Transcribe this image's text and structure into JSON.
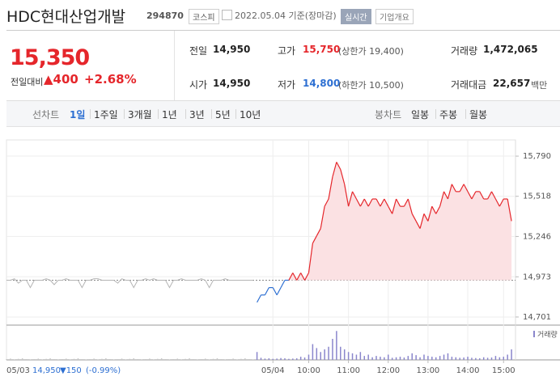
{
  "header": {
    "name": "HDC현대산업개발",
    "code": "294870",
    "market": "코스피",
    "date": "2022.05.04 기준(장마감)",
    "realtime": "실시간",
    "company_info": "기업개요"
  },
  "quote": {
    "price": "15,350",
    "change_label": "전일대비",
    "change": "▲400",
    "rate": "+2.68%"
  },
  "stats": [
    {
      "label": "전일",
      "value": "14,950"
    },
    {
      "label": "고가",
      "value": "15,750",
      "sub": "(상한가 19,400)"
    },
    {
      "label": "거래량",
      "value": "1,472,065"
    },
    {
      "label": "시가",
      "value": "14,950"
    },
    {
      "label": "저가",
      "value": "14,800",
      "sub": "(하한가 10,500)"
    },
    {
      "label": "거래대금",
      "value": "22,657",
      "unit": "백만"
    }
  ],
  "tabs": {
    "line_label": "선차트",
    "line_periods": [
      "1일",
      "1주일",
      "3개월",
      "1년",
      "3년",
      "5년",
      "10년"
    ],
    "candle_label": "봉차트",
    "candle_periods": [
      "일봉",
      "주봉",
      "월봉"
    ]
  },
  "footer": {
    "date": "05/03",
    "close": "14,950",
    "change": "▼150",
    "rate": "(-0.99%)"
  },
  "chart_data": {
    "type": "line",
    "baseline": 14950,
    "xlim": [
      0,
      128
    ],
    "ylim": [
      14657,
      15845
    ],
    "yticks": [
      {
        "value": 15790,
        "label": "15,790"
      },
      {
        "value": 15518,
        "label": "15,518"
      },
      {
        "value": 15246,
        "label": "15,246"
      },
      {
        "value": 14973,
        "label": "14,973"
      },
      {
        "value": 14701,
        "label": "14,701"
      }
    ],
    "xticks": [
      {
        "value": 67,
        "label": "05/04"
      },
      {
        "value": 76,
        "label": "10:00"
      },
      {
        "value": 86,
        "label": "11:00"
      },
      {
        "value": 96,
        "label": "12:00"
      },
      {
        "value": 106,
        "label": "13:00"
      },
      {
        "value": 116,
        "label": "14:00"
      },
      {
        "value": 125,
        "label": "15:00"
      }
    ],
    "series": [
      {
        "color": "#b4b4b4",
        "values": [
          14950,
          14950,
          14960,
          14930,
          14950,
          14950,
          14900,
          14950,
          14950,
          14950,
          14960,
          14950,
          14920,
          14950,
          14950,
          14960,
          14950,
          14950,
          14950,
          14900,
          14950,
          14950,
          14960,
          14960,
          14950,
          14950,
          14950,
          14950,
          14930,
          14960,
          14950,
          14950,
          14900,
          14950,
          14950,
          14960,
          14950,
          14960,
          14950,
          14950,
          14950,
          14900,
          14950,
          14950,
          14960,
          14950,
          14950,
          14950,
          14950,
          14960,
          14950,
          14900,
          14950,
          14950,
          14950,
          14960,
          14950,
          14950,
          14950,
          14950,
          14950,
          14950,
          14950,
          null,
          null,
          null,
          null,
          null,
          null,
          null,
          null,
          null,
          null,
          null,
          null,
          null,
          null,
          null,
          null,
          null,
          null,
          null,
          null,
          null,
          null,
          null,
          null,
          null,
          null,
          null,
          null,
          null,
          null,
          null,
          null,
          null,
          null,
          null,
          null,
          null,
          null,
          null,
          null,
          null,
          null,
          null,
          null,
          null,
          null,
          null,
          null,
          null,
          null,
          null,
          null,
          null,
          null,
          null,
          null,
          null,
          null,
          null,
          null,
          null,
          null,
          null,
          null,
          null
        ]
      },
      {
        "up_color": "#e5262b",
        "down_color": "#2d6fd2",
        "fill": "#fbe1e3",
        "values": [
          null,
          null,
          null,
          null,
          null,
          null,
          null,
          null,
          null,
          null,
          null,
          null,
          null,
          null,
          null,
          null,
          null,
          null,
          null,
          null,
          null,
          null,
          null,
          null,
          null,
          null,
          null,
          null,
          null,
          null,
          null,
          null,
          null,
          null,
          null,
          null,
          null,
          null,
          null,
          null,
          null,
          null,
          null,
          null,
          null,
          null,
          null,
          null,
          null,
          null,
          null,
          null,
          null,
          null,
          null,
          null,
          null,
          null,
          null,
          null,
          null,
          null,
          null,
          14800,
          14850,
          14850,
          14900,
          14900,
          14850,
          14900,
          14950,
          14950,
          15000,
          14950,
          15000,
          14950,
          15000,
          15200,
          15250,
          15300,
          15450,
          15500,
          15650,
          15750,
          15700,
          15600,
          15450,
          15550,
          15500,
          15450,
          15500,
          15450,
          15500,
          15500,
          15450,
          15500,
          15450,
          15400,
          15500,
          15450,
          15450,
          15500,
          15400,
          15350,
          15300,
          15400,
          15350,
          15450,
          15400,
          15450,
          15550,
          15500,
          15600,
          15550,
          15550,
          15600,
          15550,
          15500,
          15550,
          15550,
          15500,
          15500,
          15550,
          15500,
          15450,
          15500,
          15500,
          15350
        ]
      }
    ],
    "volume": {
      "label": "거래량",
      "color": "#8a86cc",
      "vlim": [
        0,
        120000
      ],
      "values": [
        3000,
        5000,
        2000,
        4000,
        6000,
        3000,
        2000,
        3000,
        5000,
        2000,
        4000,
        6000,
        3000,
        2000,
        3000,
        5000,
        2000,
        4000,
        6000,
        3000,
        2000,
        3000,
        5000,
        2000,
        4000,
        6000,
        3000,
        2000,
        3000,
        5000,
        2000,
        4000,
        6000,
        3000,
        2000,
        3000,
        5000,
        2000,
        4000,
        6000,
        3000,
        2000,
        3000,
        5000,
        2000,
        4000,
        6000,
        3000,
        2000,
        3000,
        5000,
        2000,
        4000,
        6000,
        3000,
        2000,
        3000,
        5000,
        2000,
        4000,
        6000,
        3000,
        2000,
        30000,
        8000,
        5000,
        6000,
        4000,
        5000,
        7000,
        6000,
        4000,
        5000,
        6000,
        12000,
        9000,
        20000,
        60000,
        45000,
        30000,
        40000,
        50000,
        80000,
        110000,
        50000,
        40000,
        30000,
        25000,
        20000,
        30000,
        15000,
        20000,
        10000,
        15000,
        12000,
        10000,
        20000,
        8000,
        10000,
        12000,
        9000,
        15000,
        25000,
        18000,
        10000,
        20000,
        15000,
        12000,
        10000,
        15000,
        20000,
        25000,
        12000,
        10000,
        8000,
        9000,
        12000,
        8000,
        7000,
        6000,
        10000,
        8000,
        9000,
        15000,
        10000,
        12000,
        20000,
        40000
      ]
    }
  }
}
